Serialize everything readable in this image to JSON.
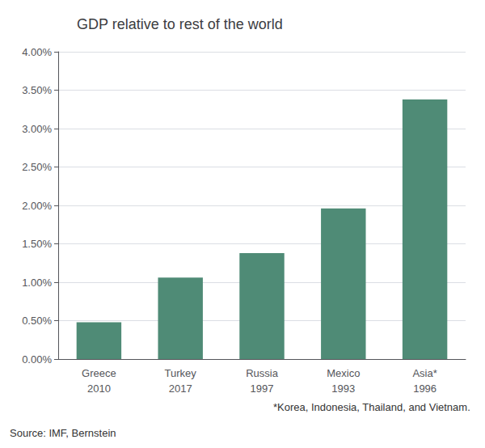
{
  "chart_data": {
    "type": "bar",
    "title": "GDP relative to rest of the world",
    "categories": [
      "Greece\n2010",
      "Turkey\n2017",
      "Russia\n1997",
      "Mexico\n1993",
      "Asia*\n1996"
    ],
    "values": [
      0.0048,
      0.0106,
      0.0138,
      0.0196,
      0.0338
    ],
    "color": "#4f8b76",
    "ylim": [
      0,
      0.04
    ],
    "yticks": [
      {
        "value": 0.0,
        "label": "0.00%"
      },
      {
        "value": 0.005,
        "label": "0.50%"
      },
      {
        "value": 0.01,
        "label": "1.00%"
      },
      {
        "value": 0.015,
        "label": "1.50%"
      },
      {
        "value": 0.02,
        "label": "2.00%"
      },
      {
        "value": 0.025,
        "label": "2.50%"
      },
      {
        "value": 0.03,
        "label": "3.00%"
      },
      {
        "value": 0.035,
        "label": "3.50%"
      },
      {
        "value": 0.04,
        "label": "4.00%"
      }
    ],
    "grid": true,
    "annotations": [
      "*Korea, Indonesia, Thailand, and Vietnam.",
      "Source: IMF, Bernstein"
    ]
  }
}
